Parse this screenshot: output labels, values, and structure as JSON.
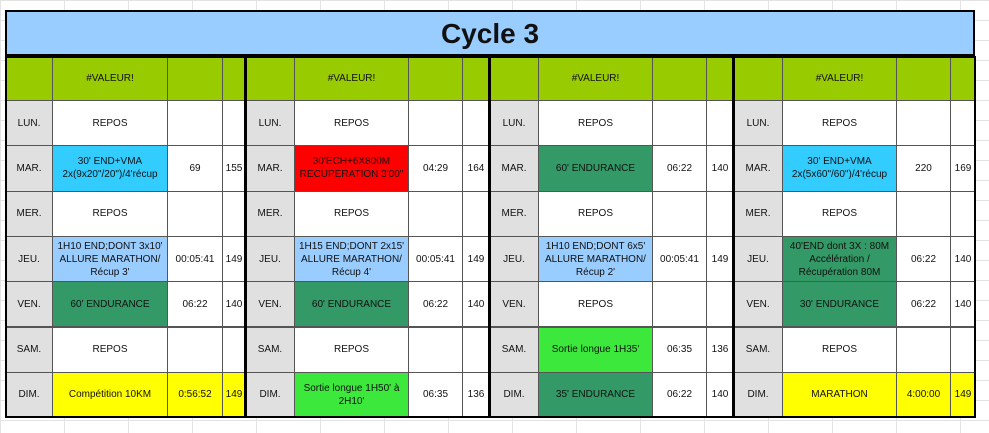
{
  "title": "Cycle 3",
  "weeks": [
    {
      "header": "#VALEUR!",
      "days": [
        {
          "day": "LUN.",
          "workout": "REPOS"
        },
        {
          "day": "MAR.",
          "workout": "30' END+VMA 2x(9x20\"/20\")/4'récup",
          "fill": "#33ccff",
          "time": 69,
          "bpm": 155
        },
        {
          "day": "MER.",
          "workout": "REPOS"
        },
        {
          "day": "JEU.",
          "workout": "1H10 END;DONT 3x10' ALLURE MARATHON/ Récup 3'",
          "fill": "#99ccff",
          "time": "00:05:41",
          "bpm": 149
        },
        {
          "day": "VEN.",
          "workout": "60' ENDURANCE",
          "fill": "#339966",
          "time": "06:22",
          "bpm": 140
        },
        {
          "day": "SAM.",
          "workout": "REPOS"
        },
        {
          "day": "DIM.",
          "workout": "Compétition 10KM",
          "fill": "#ffff00",
          "value_fill": "#ffff00",
          "time": "0:56:52",
          "bpm": 149
        }
      ]
    },
    {
      "header": "#VALEUR!",
      "days": [
        {
          "day": "LUN.",
          "workout": "REPOS"
        },
        {
          "day": "MAR.",
          "workout": "30'ECH+6X800M RECUPERATION 3'00\"",
          "fill": "#ff0000",
          "time": "04:29",
          "bpm": 164
        },
        {
          "day": "MER.",
          "workout": "REPOS"
        },
        {
          "day": "JEU.",
          "workout": "1H15 END;DONT 2x15' ALLURE MARATHON/ Récup 4'",
          "fill": "#99ccff",
          "time": "00:05:41",
          "bpm": 149
        },
        {
          "day": "VEN.",
          "workout": "60' ENDURANCE",
          "fill": "#339966",
          "time": "06:22",
          "bpm": 140
        },
        {
          "day": "SAM.",
          "workout": "REPOS"
        },
        {
          "day": "DIM.",
          "workout": "Sortie longue 1H50' à 2H10'",
          "fill": "#3ce83c",
          "time": "06:35",
          "bpm": 136
        }
      ]
    },
    {
      "header": "#VALEUR!",
      "days": [
        {
          "day": "LUN.",
          "workout": "REPOS"
        },
        {
          "day": "MAR.",
          "workout": "60' ENDURANCE",
          "fill": "#339966",
          "time": "06:22",
          "bpm": 140
        },
        {
          "day": "MER.",
          "workout": "REPOS"
        },
        {
          "day": "JEU.",
          "workout": "1H10 END;DONT 6x5' ALLURE MARATHON/ Récup 2'",
          "fill": "#99ccff",
          "time": "00:05:41",
          "bpm": 149
        },
        {
          "day": "VEN.",
          "workout": "REPOS"
        },
        {
          "day": "SAM.",
          "workout": "Sortie longue 1H35'",
          "fill": "#3ce83c",
          "time": "06:35",
          "bpm": 136
        },
        {
          "day": "DIM.",
          "workout": "35' ENDURANCE",
          "fill": "#339966",
          "time": "06:22",
          "bpm": 140
        }
      ]
    },
    {
      "header": "#VALEUR!",
      "days": [
        {
          "day": "LUN.",
          "workout": "REPOS"
        },
        {
          "day": "MAR.",
          "workout": "30' END+VMA 2x(5x60\"/60\")/4'récup",
          "fill": "#33ccff",
          "time": 220,
          "bpm": 169
        },
        {
          "day": "MER.",
          "workout": "REPOS"
        },
        {
          "day": "JEU.",
          "workout": "40'END dont 3X : 80M Accélération / Récupération 80M",
          "fill": "#339966",
          "time": "06:22",
          "bpm": 140
        },
        {
          "day": "VEN.",
          "workout": "30' ENDURANCE",
          "fill": "#339966",
          "time": "06:22",
          "bpm": 140
        },
        {
          "day": "SAM.",
          "workout": "REPOS"
        },
        {
          "day": "DIM.",
          "workout": "MARATHON",
          "fill": "#ffff00",
          "value_fill": "#ffff00",
          "time": "4:00:00",
          "bpm": 149
        }
      ]
    }
  ]
}
